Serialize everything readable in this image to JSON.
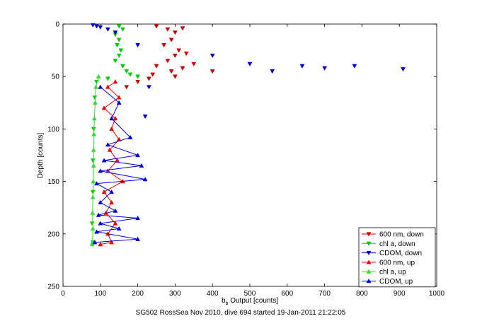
{
  "chart_data": {
    "type": "scatter",
    "xlabel": "b_b Output [counts]",
    "ylabel": "Depth [counts]",
    "caption": "SG502 RossSea Nov 2010, dive 694 started 19-Jan-2011 21:22:05",
    "xlim": [
      0,
      1000
    ],
    "ylim": [
      250,
      0
    ],
    "x_ticks": [
      "0",
      "100",
      "200",
      "300",
      "400",
      "500",
      "600",
      "700",
      "800",
      "900",
      "1000"
    ],
    "y_ticks": [
      "0",
      "50",
      "100",
      "150",
      "200",
      "250"
    ],
    "grid": true,
    "legend_position": "bottom-right",
    "series": [
      {
        "name": "600 nm, down",
        "color": "#cc0000",
        "marker": "tri-down",
        "line": false,
        "points": [
          [
            250,
            2
          ],
          [
            280,
            5
          ],
          [
            300,
            8
          ],
          [
            320,
            4
          ],
          [
            290,
            15
          ],
          [
            270,
            20
          ],
          [
            310,
            25
          ],
          [
            300,
            30
          ],
          [
            330,
            28
          ],
          [
            280,
            35
          ],
          [
            250,
            40
          ],
          [
            290,
            45
          ],
          [
            300,
            50
          ],
          [
            320,
            42
          ],
          [
            350,
            38
          ],
          [
            400,
            45
          ],
          [
            240,
            48
          ],
          [
            230,
            52
          ],
          [
            200,
            55
          ],
          [
            170,
            60
          ]
        ]
      },
      {
        "name": "chl a, down",
        "color": "#00cc00",
        "marker": "tri-down",
        "line": false,
        "points": [
          [
            150,
            2
          ],
          [
            160,
            5
          ],
          [
            140,
            10
          ],
          [
            150,
            15
          ],
          [
            145,
            20
          ],
          [
            155,
            25
          ],
          [
            150,
            30
          ],
          [
            140,
            35
          ],
          [
            160,
            40
          ],
          [
            170,
            45
          ],
          [
            180,
            48
          ],
          [
            200,
            50
          ],
          [
            120,
            52
          ],
          [
            90,
            55
          ],
          [
            85,
            70
          ],
          [
            82,
            100
          ],
          [
            80,
            130
          ],
          [
            80,
            160
          ],
          [
            78,
            190
          ],
          [
            80,
            208
          ]
        ]
      },
      {
        "name": "CDOM, down",
        "color": "#0000cc",
        "marker": "tri-down",
        "line": false,
        "points": [
          [
            80,
            1
          ],
          [
            90,
            2
          ],
          [
            100,
            3
          ],
          [
            120,
            5
          ],
          [
            140,
            8
          ],
          [
            200,
            20
          ],
          [
            400,
            30
          ],
          [
            500,
            38
          ],
          [
            560,
            45
          ],
          [
            640,
            40
          ],
          [
            700,
            42
          ],
          [
            780,
            40
          ],
          [
            910,
            43
          ],
          [
            230,
            60
          ],
          [
            220,
            88
          ]
        ]
      },
      {
        "name": "600 nm, up",
        "color": "#ee0000",
        "marker": "tri-up",
        "line": true,
        "points": [
          [
            140,
            55
          ],
          [
            120,
            60
          ],
          [
            150,
            70
          ],
          [
            110,
            80
          ],
          [
            140,
            90
          ],
          [
            130,
            100
          ],
          [
            150,
            110
          ],
          [
            125,
            120
          ],
          [
            145,
            130
          ],
          [
            120,
            140
          ],
          [
            160,
            150
          ],
          [
            110,
            160
          ],
          [
            130,
            170
          ],
          [
            115,
            180
          ],
          [
            140,
            190
          ],
          [
            120,
            200
          ],
          [
            130,
            208
          ],
          [
            100,
            210
          ]
        ]
      },
      {
        "name": "chl a, up",
        "color": "#33dd33",
        "marker": "tri-up",
        "line": true,
        "points": [
          [
            95,
            50
          ],
          [
            88,
            60
          ],
          [
            86,
            75
          ],
          [
            84,
            90
          ],
          [
            83,
            105
          ],
          [
            82,
            120
          ],
          [
            82,
            135
          ],
          [
            81,
            150
          ],
          [
            80,
            165
          ],
          [
            79,
            180
          ],
          [
            80,
            195
          ],
          [
            79,
            208
          ],
          [
            78,
            210
          ]
        ]
      },
      {
        "name": "CDOM, up",
        "color": "#0000dd",
        "marker": "tri-up",
        "line": true,
        "points": [
          [
            100,
            60
          ],
          [
            150,
            75
          ],
          [
            130,
            90
          ],
          [
            180,
            108
          ],
          [
            120,
            115
          ],
          [
            200,
            125
          ],
          [
            110,
            130
          ],
          [
            210,
            135
          ],
          [
            100,
            140
          ],
          [
            220,
            148
          ],
          [
            90,
            152
          ],
          [
            130,
            160
          ],
          [
            100,
            170
          ],
          [
            140,
            178
          ],
          [
            95,
            182
          ],
          [
            200,
            185
          ],
          [
            100,
            190
          ],
          [
            150,
            195
          ],
          [
            90,
            198
          ],
          [
            200,
            205
          ],
          [
            85,
            208
          ]
        ]
      }
    ]
  }
}
